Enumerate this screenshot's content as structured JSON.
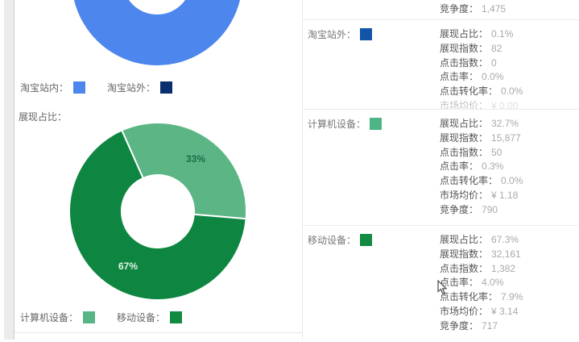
{
  "left_panel": {
    "section_title": "展现占比：",
    "legend_top": {
      "items": [
        {
          "label": "淘宝站内：",
          "color": "#4d86ec"
        },
        {
          "label": "淘宝站外：",
          "color": "#0a2e6e"
        }
      ]
    },
    "legend_bottom": {
      "items": [
        {
          "label": "计算机设备：",
          "color": "#57b586"
        },
        {
          "label": "移动设备：",
          "color": "#128a43"
        }
      ]
    }
  },
  "chart_data": [
    {
      "type": "pie",
      "subtype": "donut",
      "title": "",
      "legend_position": "bottom",
      "series": [
        {
          "name": "淘宝站内",
          "value": 99.9,
          "color": "#4d86ec",
          "label": ""
        },
        {
          "name": "淘宝站外",
          "value": 0.1,
          "color": "#0a2e6e",
          "label": ""
        }
      ]
    },
    {
      "type": "pie",
      "subtype": "donut",
      "title": "展现占比",
      "legend_position": "bottom",
      "series": [
        {
          "name": "计算机设备",
          "value": 33,
          "color": "#5bb585",
          "label": "33%",
          "label_color": "#1c6e48"
        },
        {
          "name": "移动设备",
          "value": 67,
          "color": "#0e8641",
          "label": "67%",
          "label_color": "#e2f3e9"
        }
      ]
    }
  ],
  "right_panel": {
    "sections": [
      {
        "stats": [
          {
            "label": "竞争度：",
            "value": "1,475"
          }
        ]
      },
      {
        "name": "淘宝站外：",
        "color": "#1254a8",
        "stats": [
          {
            "label": "展现占比：",
            "value": "0.1%"
          },
          {
            "label": "展现指数：",
            "value": "82"
          },
          {
            "label": "点击指数：",
            "value": "0"
          },
          {
            "label": "点击率：",
            "value": "0.0%"
          },
          {
            "label": "点击转化率：",
            "value": "0.0%"
          }
        ],
        "faint_stat": {
          "label": "市场均价：",
          "value": "¥ 0.00"
        }
      },
      {
        "name": "计算机设备：",
        "color": "#4cb583",
        "stats": [
          {
            "label": "展现占比：",
            "value": "32.7%"
          },
          {
            "label": "展现指数：",
            "value": "15,877"
          },
          {
            "label": "点击指数：",
            "value": "50"
          },
          {
            "label": "点击率：",
            "value": "0.3%"
          },
          {
            "label": "点击转化率：",
            "value": "0.0%"
          },
          {
            "label": "市场均价：",
            "value": "¥ 1.18"
          },
          {
            "label": "竞争度：",
            "value": "790"
          }
        ]
      },
      {
        "name": "移动设备：",
        "color": "#128a43",
        "stats": [
          {
            "label": "展现占比：",
            "value": "67.3%"
          },
          {
            "label": "展现指数：",
            "value": "32,161"
          },
          {
            "label": "点击指数：",
            "value": "1,382"
          },
          {
            "label": "点击率：",
            "value": "4.0%"
          },
          {
            "label": "点击转化率：",
            "value": "7.9%"
          },
          {
            "label": "市场均价：",
            "value": "¥ 3.14"
          },
          {
            "label": "竞争度：",
            "value": "717"
          }
        ]
      }
    ]
  }
}
